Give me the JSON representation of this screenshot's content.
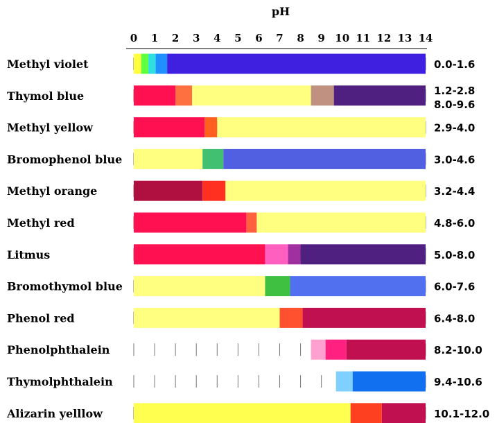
{
  "chart_data": {
    "type": "bar",
    "title": "pH",
    "xlim": [
      0,
      14
    ],
    "x_ticks": [
      "0",
      "1",
      "2",
      "3",
      "4",
      "5",
      "6",
      "7",
      "8",
      "9",
      "10",
      "11",
      "12",
      "13",
      "14"
    ],
    "grid": true,
    "indicators": [
      {
        "name": "Methyl violet",
        "range_label": "0.0-1.6",
        "ranges": [
          [
            0.0,
            1.6
          ]
        ],
        "segments": [
          {
            "from": 0.0,
            "to": 0.35,
            "color": "#ffff40"
          },
          {
            "from": 0.35,
            "to": 0.7,
            "color": "#60ff40"
          },
          {
            "from": 0.7,
            "to": 1.05,
            "color": "#30e0e0"
          },
          {
            "from": 1.05,
            "to": 1.6,
            "color": "#2090ff"
          },
          {
            "from": 1.6,
            "to": 14.0,
            "color": "#4020e0"
          }
        ]
      },
      {
        "name": "Thymol blue",
        "range_label": "1.2-2.8 8.0-9.6",
        "ranges": [
          [
            1.2,
            2.8
          ],
          [
            8.0,
            9.6
          ]
        ],
        "segments": [
          {
            "from": 0.0,
            "to": 2.0,
            "color": "#ff1050"
          },
          {
            "from": 2.0,
            "to": 2.8,
            "color": "#ff7040"
          },
          {
            "from": 2.8,
            "to": 8.5,
            "color": "#ffff80"
          },
          {
            "from": 8.5,
            "to": 9.6,
            "color": "#c09080"
          },
          {
            "from": 9.6,
            "to": 14.0,
            "color": "#502080"
          }
        ]
      },
      {
        "name": "Methyl yellow",
        "range_label": "2.9-4.0",
        "ranges": [
          [
            2.9,
            4.0
          ]
        ],
        "segments": [
          {
            "from": 0.0,
            "to": 3.4,
            "color": "#ff1050"
          },
          {
            "from": 3.4,
            "to": 4.0,
            "color": "#ff6020"
          },
          {
            "from": 4.0,
            "to": 14.0,
            "color": "#ffff80"
          }
        ]
      },
      {
        "name": "Bromophenol blue",
        "range_label": "3.0-4.6",
        "ranges": [
          [
            3.0,
            4.6
          ]
        ],
        "segments": [
          {
            "from": 0.0,
            "to": 3.3,
            "color": "#ffff80"
          },
          {
            "from": 3.3,
            "to": 4.3,
            "color": "#40c070"
          },
          {
            "from": 4.3,
            "to": 14.0,
            "color": "#5060e0"
          }
        ]
      },
      {
        "name": "Methyl orange",
        "range_label": "3.2-4.4",
        "ranges": [
          [
            3.2,
            4.4
          ]
        ],
        "segments": [
          {
            "from": 0.0,
            "to": 3.3,
            "color": "#b01040"
          },
          {
            "from": 3.3,
            "to": 4.4,
            "color": "#ff3020"
          },
          {
            "from": 4.4,
            "to": 14.0,
            "color": "#ffff80"
          }
        ]
      },
      {
        "name": "Methyl red",
        "range_label": "4.8-6.0",
        "ranges": [
          [
            4.8,
            6.0
          ]
        ],
        "segments": [
          {
            "from": 0.0,
            "to": 5.4,
            "color": "#ff1050"
          },
          {
            "from": 5.4,
            "to": 5.9,
            "color": "#ff6040"
          },
          {
            "from": 5.9,
            "to": 14.0,
            "color": "#ffff80"
          }
        ]
      },
      {
        "name": "Litmus",
        "range_label": "5.0-8.0",
        "ranges": [
          [
            5.0,
            8.0
          ]
        ],
        "segments": [
          {
            "from": 0.0,
            "to": 6.3,
            "color": "#ff1050"
          },
          {
            "from": 6.3,
            "to": 7.4,
            "color": "#ff60c0"
          },
          {
            "from": 7.4,
            "to": 8.0,
            "color": "#a030a0"
          },
          {
            "from": 8.0,
            "to": 14.0,
            "color": "#502080"
          }
        ]
      },
      {
        "name": "Bromothymol blue",
        "range_label": "6.0-7.6",
        "ranges": [
          [
            6.0,
            7.6
          ]
        ],
        "segments": [
          {
            "from": 0.0,
            "to": 6.3,
            "color": "#ffff80"
          },
          {
            "from": 6.3,
            "to": 7.5,
            "color": "#40c040"
          },
          {
            "from": 7.5,
            "to": 14.0,
            "color": "#5070f0"
          }
        ]
      },
      {
        "name": "Phenol red",
        "range_label": "6.4-8.0",
        "ranges": [
          [
            6.4,
            8.0
          ]
        ],
        "segments": [
          {
            "from": 0.0,
            "to": 7.0,
            "color": "#ffff80"
          },
          {
            "from": 7.0,
            "to": 8.1,
            "color": "#ff5030"
          },
          {
            "from": 8.1,
            "to": 14.0,
            "color": "#c01050"
          }
        ]
      },
      {
        "name": "Phenolphthalein",
        "range_label": "8.2-10.0",
        "ranges": [
          [
            8.2,
            10.0
          ]
        ],
        "segments": [
          {
            "from": 8.5,
            "to": 9.2,
            "color": "#ffa0d0"
          },
          {
            "from": 9.2,
            "to": 10.2,
            "color": "#ff2080"
          },
          {
            "from": 10.2,
            "to": 14.0,
            "color": "#c01050"
          }
        ]
      },
      {
        "name": "Thymolphthalein",
        "range_label": "9.4-10.6",
        "ranges": [
          [
            9.4,
            10.6
          ]
        ],
        "segments": [
          {
            "from": 9.7,
            "to": 10.5,
            "color": "#80d0ff"
          },
          {
            "from": 10.5,
            "to": 14.0,
            "color": "#1070f0"
          }
        ]
      },
      {
        "name": "Alizarin yelllow",
        "range_label": "10.1-12.0",
        "ranges": [
          [
            10.1,
            12.0
          ]
        ],
        "segments": [
          {
            "from": 0.0,
            "to": 10.4,
            "color": "#ffff50"
          },
          {
            "from": 10.4,
            "to": 11.9,
            "color": "#ff4020"
          },
          {
            "from": 11.9,
            "to": 14.0,
            "color": "#c01050"
          }
        ]
      }
    ]
  }
}
